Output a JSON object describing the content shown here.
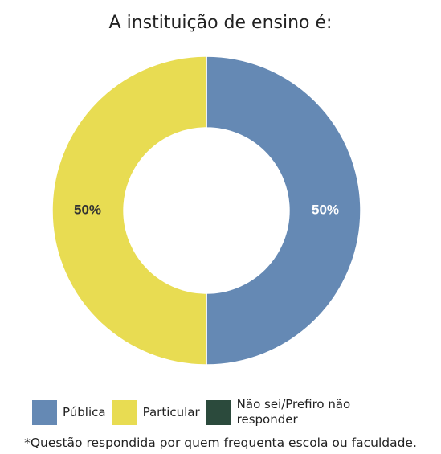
{
  "chart_data": {
    "type": "donut",
    "title": "A instituição de ensino é:",
    "categories": [
      "Pública",
      "Particular",
      "Não sei/Prefiro não responder"
    ],
    "values": [
      50,
      50,
      0
    ],
    "value_labels": [
      "50%",
      "50%",
      null
    ],
    "colors": [
      "#6589b4",
      "#e8dc52",
      "#2b4a3c"
    ],
    "legend": "bottom",
    "footnote": "*Questão respondida por quem frequenta escola ou faculdade."
  }
}
